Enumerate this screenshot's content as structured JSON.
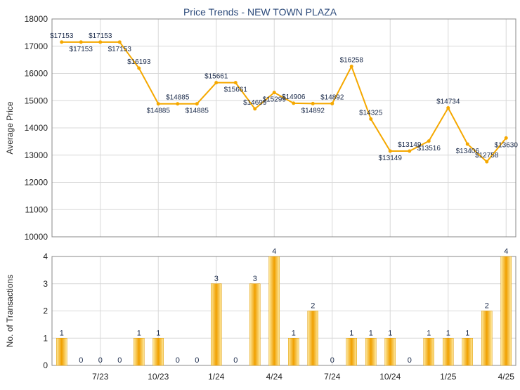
{
  "title": "Price Trends - NEW TOWN PLAZA",
  "colors": {
    "line": "#f5a800",
    "bar_light": "#fde9a0",
    "bar_dark": "#f0a000",
    "grid": "#d8d8d8",
    "axis": "#888888",
    "title": "#2c4a7a",
    "point_label": "#1a2a4a"
  },
  "chart_data": [
    {
      "type": "line",
      "ylabel": "Average Price",
      "ylim": [
        10000,
        18000
      ],
      "yticks": [
        "10000",
        "11000",
        "12000",
        "13000",
        "14000",
        "15000",
        "16000",
        "17000",
        "18000"
      ],
      "grid": true,
      "x": [
        0,
        1,
        2,
        3,
        4,
        5,
        6,
        7,
        8,
        9,
        10,
        11,
        12,
        13,
        14,
        15,
        16,
        17,
        18,
        19,
        20,
        21,
        22,
        23
      ],
      "values": [
        17153,
        17153,
        17153,
        17153,
        16193,
        14885,
        14885,
        14885,
        15661,
        15661,
        14699,
        15299,
        14906,
        14892,
        14892,
        16258,
        14325,
        13149,
        13149,
        13516,
        14734,
        13406,
        12758,
        13630
      ],
      "labels": [
        "$17153",
        "$17153",
        "$17153",
        "$17153",
        "$16193",
        "$14885",
        "$14885",
        "$14885",
        "$15661",
        "$15661",
        "$14699",
        "$15299",
        "$14906",
        "$14892",
        "$14892",
        "$16258",
        "$14325",
        "$13149",
        "$13149",
        "$13516",
        "$14734",
        "$13406",
        "$12758",
        "$13630"
      ]
    },
    {
      "type": "bar",
      "ylabel": "No. of Transactions",
      "ylim": [
        0,
        4
      ],
      "yticks": [
        "0",
        "1",
        "2",
        "3",
        "4"
      ],
      "grid": true,
      "x": [
        0,
        1,
        2,
        3,
        4,
        5,
        6,
        7,
        8,
        9,
        10,
        11,
        12,
        13,
        14,
        15,
        16,
        17,
        18,
        19,
        20,
        21,
        22,
        23
      ],
      "values": [
        1,
        0,
        0,
        0,
        1,
        1,
        0,
        0,
        3,
        0,
        3,
        4,
        1,
        2,
        0,
        1,
        1,
        1,
        0,
        1,
        1,
        1,
        2,
        4
      ],
      "xticks": [
        {
          "pos": 2,
          "label": "7/23"
        },
        {
          "pos": 5,
          "label": "10/23"
        },
        {
          "pos": 8,
          "label": "1/24"
        },
        {
          "pos": 11,
          "label": "4/24"
        },
        {
          "pos": 14,
          "label": "7/24"
        },
        {
          "pos": 17,
          "label": "10/24"
        },
        {
          "pos": 20,
          "label": "1/25"
        },
        {
          "pos": 23,
          "label": "4/25"
        }
      ]
    }
  ]
}
